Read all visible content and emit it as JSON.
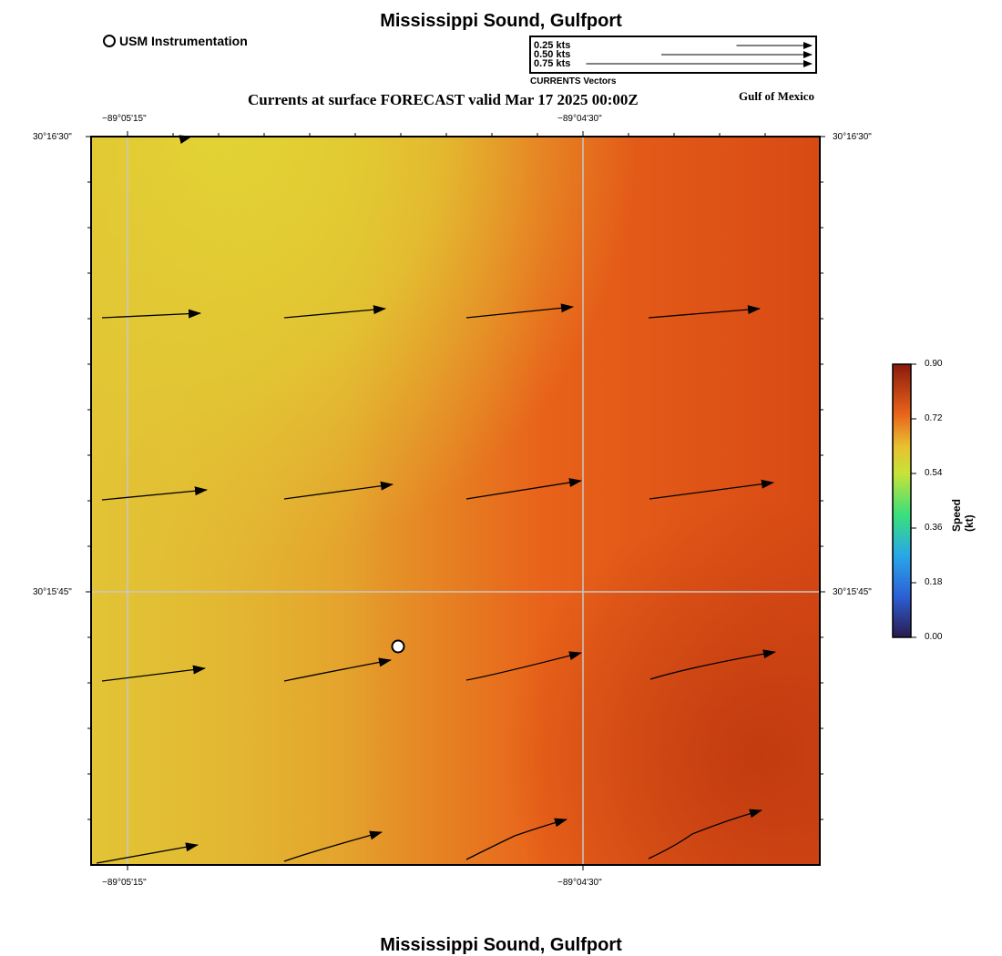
{
  "top_title": "Mississippi Sound, Gulfport",
  "bottom_title": "Mississippi Sound, Gulfport",
  "legend": {
    "usm_label": "USM Instrumentation"
  },
  "vector_legend": {
    "rows": [
      "0.25 kts",
      "0.50 kts",
      "0.75 kts"
    ],
    "speeds_kts": [
      0.25,
      0.5,
      0.75
    ],
    "caption": "CURRENTS Vectors"
  },
  "subtitle": "Currents at surface FORECAST valid Mar 17 2025 00:00Z",
  "gulf_label": "Gulf of Mexico",
  "axes": {
    "top_ticks": [
      "−89°05'15\"",
      "−89°04'30\""
    ],
    "bottom_ticks": [
      "−89°05'15\"",
      "−89°04'30\""
    ],
    "left_ticks": [
      "30°16'30\"",
      "30°15'45\""
    ],
    "right_ticks": [
      "30°16'30\"",
      "30°15'45\""
    ]
  },
  "colorbar": {
    "title": "Speed (kt)",
    "ticks": [
      "0.90",
      "0.72",
      "0.54",
      "0.36",
      "0.18",
      "0.00"
    ],
    "min": 0.0,
    "max": 0.9
  },
  "colors": {
    "field_low": "#e2dc34",
    "field_mid": "#e49a2c",
    "field_high": "#e85a14",
    "field_max": "#c43c10"
  }
}
